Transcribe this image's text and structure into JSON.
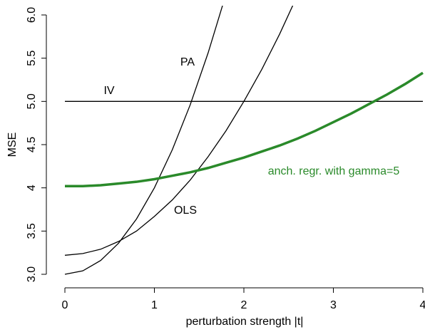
{
  "chart_data": {
    "type": "line",
    "xlabel": "perturbation strength |t|",
    "ylabel": "MSE",
    "x": [
      0,
      0.2,
      0.4,
      0.6,
      0.8,
      1.0,
      1.2,
      1.4,
      1.6,
      1.8,
      2.0,
      2.2,
      2.4,
      2.6,
      2.8,
      3.0,
      3.2,
      3.4,
      3.6,
      3.8,
      4.0
    ],
    "xlim": [
      0,
      4
    ],
    "xticks": [
      0,
      1,
      2,
      3,
      4
    ],
    "ylim": [
      3,
      6
    ],
    "yticks": [
      {
        "value": 3,
        "label": "3.0"
      },
      3.5,
      4.0,
      4.5,
      {
        "value": 5,
        "label": "5.0"
      },
      5.5,
      {
        "value": 6,
        "label": "6.0"
      }
    ],
    "series": [
      {
        "name": "PA",
        "color": "#000000",
        "values": [
          3.0,
          3.04,
          3.16,
          3.36,
          3.64,
          4.0,
          4.44,
          4.96,
          5.56,
          6.24,
          null,
          null,
          null,
          null,
          null,
          null,
          null,
          null,
          null,
          null,
          null
        ]
      },
      {
        "name": "IV",
        "color": "#000000",
        "values": [
          5,
          5,
          5,
          5,
          5,
          5,
          5,
          5,
          5,
          5,
          5,
          5,
          5,
          5,
          5,
          5,
          5,
          5,
          5,
          5,
          5
        ]
      },
      {
        "name": "OLS",
        "color": "#000000",
        "values": [
          3.22,
          3.24,
          3.29,
          3.38,
          3.5,
          3.67,
          3.86,
          4.09,
          4.36,
          4.66,
          5.0,
          5.37,
          5.78,
          6.23,
          null,
          null,
          null,
          null,
          null,
          null,
          null
        ]
      },
      {
        "name": "anch. regr. with gamma=5",
        "color": "#2a8a2a",
        "values": [
          4.02,
          4.02,
          4.03,
          4.05,
          4.07,
          4.1,
          4.14,
          4.18,
          4.23,
          4.29,
          4.35,
          4.42,
          4.49,
          4.57,
          4.66,
          4.76,
          4.86,
          4.97,
          5.08,
          5.2,
          5.33
        ]
      }
    ]
  }
}
